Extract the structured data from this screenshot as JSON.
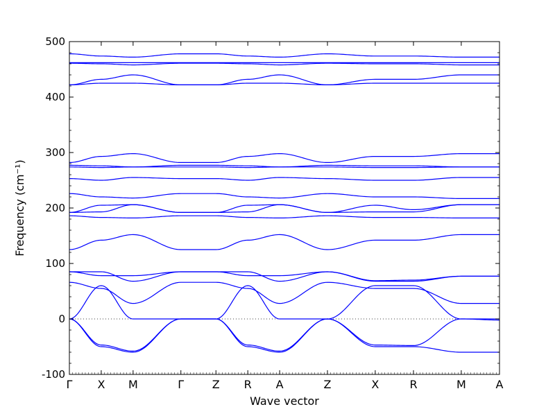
{
  "chart_data": {
    "type": "line",
    "title": "",
    "xlabel": "Wave vector",
    "ylabel": "Frequency (cm⁻¹)",
    "ylim": [
      -100,
      500
    ],
    "yticks": [
      -100,
      0,
      100,
      200,
      300,
      400,
      500
    ],
    "x_range": [
      0,
      13.5
    ],
    "grid": false,
    "legend": "none",
    "line_color": "#0000ff",
    "zero_line": {
      "y": 0,
      "style": "dotted",
      "color": "#000000"
    },
    "kpoints": [
      {
        "label": "Γ",
        "x": 0
      },
      {
        "label": "X",
        "x": 1
      },
      {
        "label": "M",
        "x": 2
      },
      {
        "label": "Γ",
        "x": 3.5
      },
      {
        "label": "Z",
        "x": 4.6
      },
      {
        "label": "R",
        "x": 5.6
      },
      {
        "label": "A",
        "x": 6.6
      },
      {
        "label": "Z",
        "x": 8.1
      },
      {
        "label": "X",
        "x": 9.6
      },
      {
        "label": "R",
        "x": 10.8
      },
      {
        "label": "M",
        "x": 12.3
      },
      {
        "label": "A",
        "x": 13.5
      }
    ],
    "series": [
      {
        "values": [
          0,
          -47,
          -58,
          0,
          0,
          -47,
          -58,
          0,
          -47,
          -48,
          0,
          0
        ]
      },
      {
        "values": [
          0,
          -50,
          -60,
          0,
          0,
          -50,
          -60,
          0,
          -50,
          -50,
          -60,
          -60
        ]
      },
      {
        "values": [
          0,
          60,
          0,
          0,
          0,
          60,
          0,
          0,
          60,
          60,
          0,
          -2
        ]
      },
      {
        "values": [
          66,
          55,
          28,
          66,
          66,
          55,
          28,
          66,
          55,
          55,
          28,
          28
        ]
      },
      {
        "values": [
          85,
          85,
          68,
          85,
          85,
          85,
          68,
          85,
          69,
          70,
          77,
          77
        ]
      },
      {
        "values": [
          85,
          78,
          78,
          85,
          85,
          78,
          78,
          85,
          68,
          68,
          77,
          77
        ]
      },
      {
        "values": [
          125,
          142,
          152,
          125,
          125,
          142,
          152,
          125,
          142,
          142,
          152,
          152
        ]
      },
      {
        "values": [
          186,
          183,
          182,
          186,
          186,
          183,
          182,
          186,
          183,
          183,
          182,
          182
        ]
      },
      {
        "values": [
          192,
          205,
          206,
          192,
          192,
          205,
          206,
          192,
          205,
          197,
          206,
          206
        ]
      },
      {
        "values": [
          192,
          193,
          206,
          192,
          192,
          193,
          206,
          192,
          193,
          193,
          206,
          206
        ]
      },
      {
        "values": [
          226,
          220,
          218,
          226,
          226,
          220,
          218,
          226,
          220,
          220,
          217,
          217
        ]
      },
      {
        "values": [
          253,
          250,
          255,
          253,
          253,
          250,
          255,
          253,
          250,
          250,
          255,
          255
        ]
      },
      {
        "values": [
          274,
          273,
          274,
          274,
          274,
          273,
          274,
          274,
          273,
          273,
          274,
          274
        ]
      },
      {
        "values": [
          277,
          276,
          274,
          277,
          277,
          276,
          274,
          277,
          276,
          276,
          274,
          274
        ]
      },
      {
        "values": [
          282,
          293,
          298,
          282,
          282,
          293,
          298,
          282,
          293,
          293,
          298,
          298
        ]
      },
      {
        "values": [
          422,
          425,
          425,
          422,
          422,
          425,
          425,
          422,
          425,
          425,
          425,
          425
        ]
      },
      {
        "values": [
          422,
          432,
          440,
          422,
          422,
          432,
          440,
          422,
          432,
          432,
          440,
          440
        ]
      },
      {
        "values": [
          461,
          460,
          458,
          461,
          461,
          460,
          458,
          461,
          460,
          460,
          458,
          458
        ]
      },
      {
        "values": [
          462,
          462,
          462,
          462,
          462,
          462,
          462,
          462,
          462,
          462,
          462,
          462
        ]
      },
      {
        "values": [
          478,
          474,
          472,
          478,
          478,
          474,
          472,
          478,
          474,
          474,
          472,
          472
        ]
      }
    ]
  }
}
